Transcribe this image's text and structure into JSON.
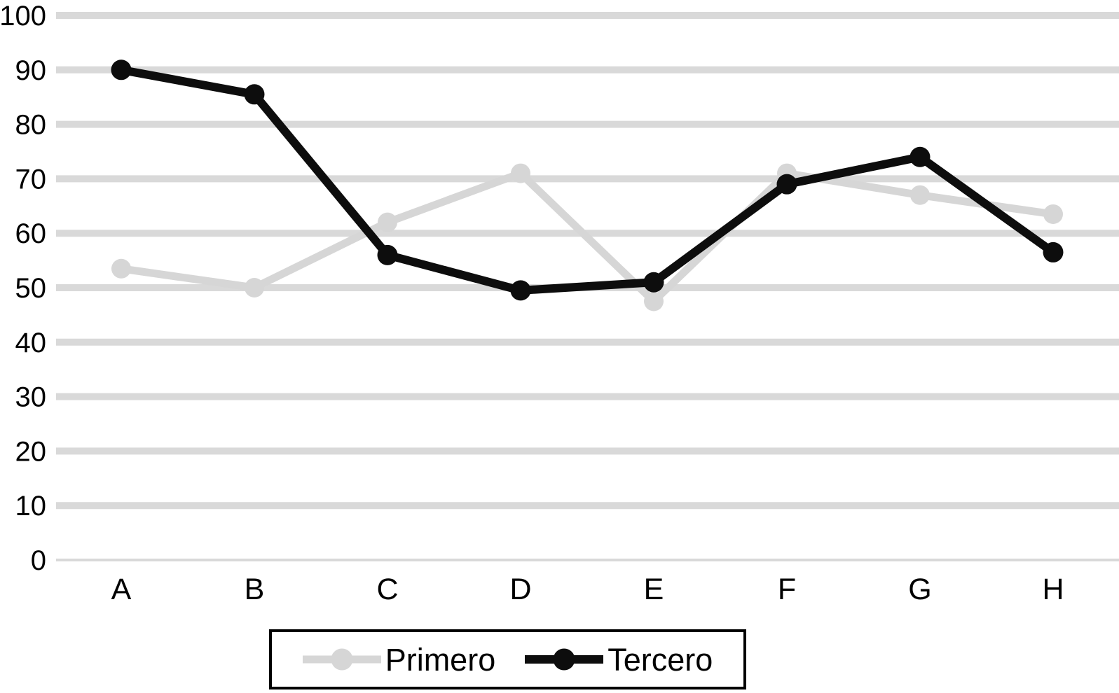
{
  "chart_data": {
    "type": "line",
    "title": "",
    "xlabel": "",
    "ylabel": "",
    "categories": [
      "A",
      "B",
      "C",
      "D",
      "E",
      "F",
      "G",
      "H"
    ],
    "series": [
      {
        "name": "Primero",
        "color": "#d6d6d6",
        "values": [
          53.5,
          50,
          62,
          71,
          47.5,
          71,
          67,
          63.5
        ]
      },
      {
        "name": "Tercero",
        "color": "#0d0d0d",
        "values": [
          90,
          85.5,
          56,
          49.5,
          51,
          69,
          74,
          56.5
        ]
      }
    ],
    "ylim": [
      0,
      100
    ],
    "yticks": [
      0,
      10,
      20,
      30,
      40,
      50,
      60,
      70,
      80,
      90,
      100
    ],
    "grid": "horizontal",
    "legend_position": "bottom",
    "marker": "circle",
    "gridline_color": "#d9d9d9",
    "zero_line_color": "#d9d9d9",
    "text_color": "#000000",
    "legend_border_color": "#000000",
    "background": "#ffffff"
  }
}
